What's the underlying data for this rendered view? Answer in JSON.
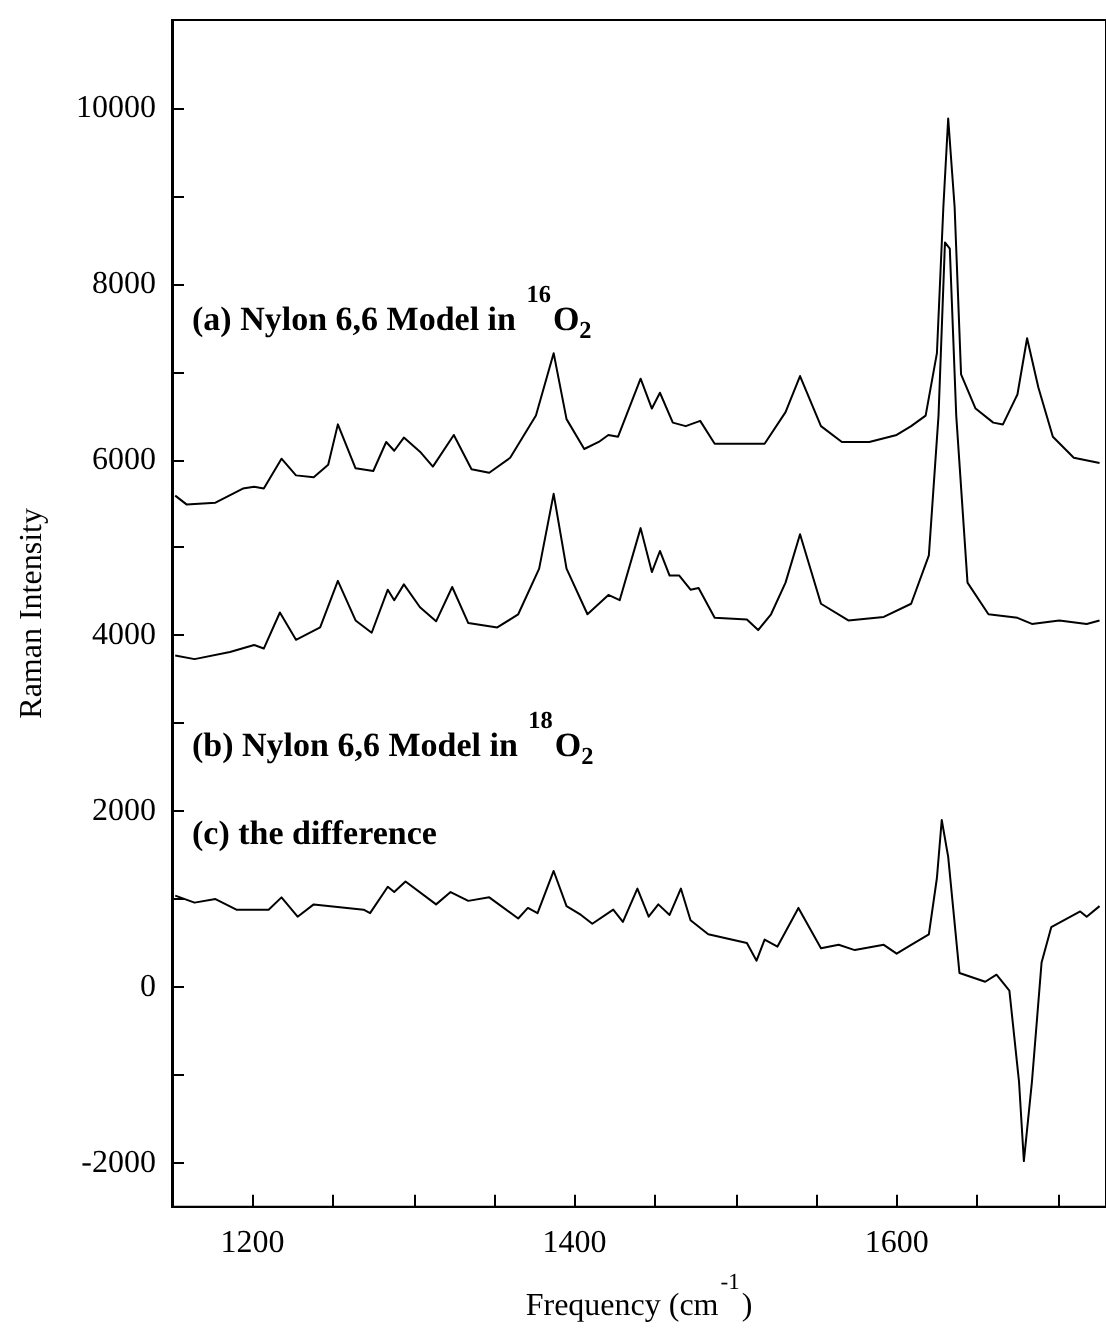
{
  "chart_data": {
    "type": "line",
    "xlabel": "Frequency (cm$^{-1}$)",
    "ylabel": "Raman Intensity",
    "xlim": [
      1150,
      1730
    ],
    "ylim": [
      -2500,
      11000
    ],
    "xticks": [
      {
        "value": 1150,
        "label": null
      },
      1200,
      {
        "value": 1250,
        "label": null
      },
      {
        "value": 1300,
        "label": null
      },
      {
        "value": 1350,
        "label": null
      },
      1400,
      {
        "value": 1450,
        "label": null
      },
      {
        "value": 1500,
        "label": null
      },
      {
        "value": 1550,
        "label": null
      },
      1600,
      {
        "value": 1650,
        "label": null
      },
      {
        "value": 1700,
        "label": null
      }
    ],
    "yticks": [
      -2000,
      {
        "value": -1000,
        "label": null
      },
      0,
      {
        "value": 1000,
        "label": null
      },
      2000,
      {
        "value": 3000,
        "label": null
      },
      4000,
      {
        "value": 5000,
        "label": null
      },
      6000,
      {
        "value": 7000,
        "label": null
      },
      8000,
      {
        "value": 9000,
        "label": null
      },
      10000
    ],
    "grid": false,
    "legend": false,
    "marker": "none",
    "line_style": "solid",
    "series": [
      {
        "name": "(a) Nylon 6,6 Model in $^{16}$O$_{2}$",
        "color": "#000000",
        "x": [
          1152,
          1159,
          1177,
          1194,
          1201,
          1207,
          1218,
          1227,
          1238,
          1247,
          1253,
          1264,
          1275,
          1283,
          1288,
          1294,
          1304,
          1312,
          1325,
          1336,
          1347,
          1360,
          1376,
          1387,
          1395,
          1406,
          1415,
          1421,
          1427,
          1441,
          1448,
          1453,
          1461,
          1469,
          1478,
          1487,
          1518,
          1531,
          1540,
          1553,
          1566,
          1583,
          1600,
          1609,
          1618,
          1625,
          1629,
          1632,
          1636,
          1640,
          1649,
          1660,
          1666,
          1675,
          1681,
          1688,
          1697,
          1710,
          1726
        ],
        "values": [
          5590,
          5490,
          5510,
          5670,
          5690,
          5670,
          6010,
          5820,
          5800,
          5940,
          6400,
          5900,
          5870,
          6200,
          6100,
          6250,
          6090,
          5920,
          6280,
          5890,
          5850,
          6020,
          6500,
          7210,
          6460,
          6120,
          6200,
          6280,
          6260,
          6920,
          6580,
          6760,
          6420,
          6380,
          6440,
          6180,
          6180,
          6540,
          6950,
          6380,
          6200,
          6200,
          6280,
          6380,
          6500,
          7210,
          8870,
          9880,
          8870,
          6970,
          6580,
          6420,
          6400,
          6740,
          7380,
          6820,
          6260,
          6020,
          5960
        ]
      },
      {
        "name": "(b) Nylon 6,6 Model in $^{18}$O$_{2}$",
        "color": "#000000",
        "x": [
          1152,
          1164,
          1186,
          1201,
          1207,
          1217,
          1227,
          1242,
          1253,
          1264,
          1274,
          1284,
          1288,
          1294,
          1304,
          1314,
          1324,
          1334,
          1352,
          1365,
          1378,
          1387,
          1395,
          1408,
          1421,
          1428,
          1441,
          1448,
          1453,
          1459,
          1465,
          1472,
          1477,
          1487,
          1507,
          1514,
          1522,
          1531,
          1540,
          1553,
          1570,
          1592,
          1609,
          1620,
          1626,
          1630,
          1633,
          1637,
          1644,
          1657,
          1675,
          1684,
          1701,
          1718,
          1726
        ],
        "values": [
          3770,
          3730,
          3810,
          3890,
          3850,
          4260,
          3950,
          4090,
          4620,
          4170,
          4030,
          4520,
          4400,
          4580,
          4320,
          4160,
          4550,
          4140,
          4090,
          4240,
          4760,
          5610,
          4760,
          4240,
          4460,
          4400,
          5220,
          4720,
          4960,
          4680,
          4680,
          4520,
          4540,
          4200,
          4180,
          4060,
          4240,
          4600,
          5150,
          4360,
          4170,
          4210,
          4360,
          4910,
          6500,
          8470,
          8400,
          6500,
          4600,
          4240,
          4200,
          4130,
          4170,
          4130,
          4170
        ]
      },
      {
        "name": "(c) the difference",
        "color": "#000000",
        "x": [
          1152,
          1164,
          1177,
          1190,
          1210,
          1218,
          1228,
          1238,
          1269,
          1273,
          1284,
          1288,
          1295,
          1314,
          1323,
          1334,
          1347,
          1365,
          1371,
          1377,
          1387,
          1395,
          1404,
          1411,
          1424,
          1430,
          1439,
          1446,
          1452,
          1459,
          1466,
          1472,
          1483,
          1507,
          1513,
          1518,
          1526,
          1539,
          1553,
          1564,
          1574,
          1592,
          1600,
          1609,
          1620,
          1625,
          1628,
          1632,
          1639,
          1655,
          1662,
          1670,
          1676,
          1679,
          1684,
          1690,
          1696,
          1714,
          1718,
          1726
        ],
        "values": [
          1040,
          960,
          1000,
          880,
          880,
          1020,
          800,
          940,
          880,
          840,
          1140,
          1080,
          1200,
          940,
          1080,
          980,
          1020,
          780,
          900,
          840,
          1320,
          920,
          820,
          720,
          880,
          740,
          1120,
          800,
          940,
          820,
          1120,
          760,
          600,
          500,
          300,
          540,
          460,
          900,
          440,
          480,
          420,
          480,
          380,
          480,
          600,
          1240,
          1900,
          1480,
          160,
          60,
          140,
          -40,
          -1080,
          -1980,
          -1080,
          280,
          680,
          860,
          800,
          920
        ]
      }
    ]
  }
}
